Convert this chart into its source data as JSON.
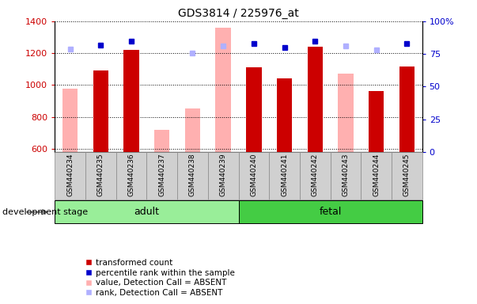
{
  "title": "GDS3814 / 225976_at",
  "categories": [
    "GSM440234",
    "GSM440235",
    "GSM440236",
    "GSM440237",
    "GSM440238",
    "GSM440239",
    "GSM440240",
    "GSM440241",
    "GSM440242",
    "GSM440243",
    "GSM440244",
    "GSM440245"
  ],
  "group": [
    "adult",
    "adult",
    "adult",
    "adult",
    "adult",
    "adult",
    "fetal",
    "fetal",
    "fetal",
    "fetal",
    "fetal",
    "fetal"
  ],
  "transformed_count": [
    null,
    1090,
    1220,
    null,
    null,
    null,
    1110,
    1040,
    1240,
    null,
    960,
    1115
  ],
  "percentile_rank": [
    null,
    82,
    85,
    null,
    null,
    null,
    83,
    80,
    85,
    null,
    null,
    83
  ],
  "absent_value": [
    975,
    null,
    null,
    720,
    855,
    1360,
    null,
    null,
    null,
    1070,
    null,
    null
  ],
  "absent_rank": [
    79,
    null,
    null,
    null,
    76,
    81,
    null,
    null,
    null,
    81,
    78,
    null
  ],
  "ylim_left": [
    580,
    1400
  ],
  "ylim_right": [
    0,
    100
  ],
  "yticks_left": [
    600,
    800,
    1000,
    1200,
    1400
  ],
  "yticks_right": [
    0,
    25,
    50,
    75,
    100
  ],
  "color_dark_red": "#cc0000",
  "color_pink": "#ffb0b0",
  "color_blue": "#0000cc",
  "color_lightblue": "#b0b0ff",
  "adult_color": "#99ee99",
  "fetal_color": "#44cc44",
  "group_box_color": "#d0d0d0",
  "legend_items": [
    "transformed count",
    "percentile rank within the sample",
    "value, Detection Call = ABSENT",
    "rank, Detection Call = ABSENT"
  ],
  "legend_colors": [
    "#cc0000",
    "#0000cc",
    "#ffb0b0",
    "#b0b0ff"
  ]
}
